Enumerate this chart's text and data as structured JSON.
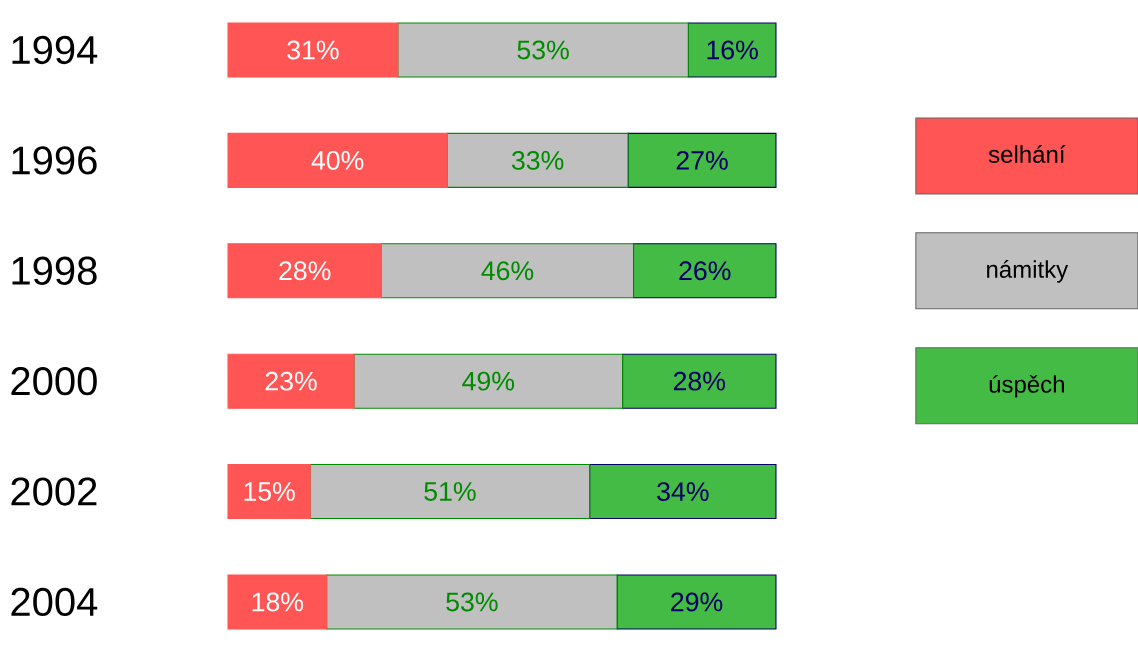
{
  "chart_data": {
    "type": "bar",
    "orientation": "horizontal",
    "stacked": true,
    "categories": [
      "1994",
      "1996",
      "1998",
      "2000",
      "2002",
      "2004"
    ],
    "tick_labels": "y",
    "legend": "right",
    "series": [
      {
        "name": "selhání",
        "color": "#ff5555",
        "values": [
          31,
          40,
          28,
          23,
          15,
          18
        ],
        "value_labels": [
          "31%",
          "40%",
          "28%",
          "23%",
          "15%",
          "18%"
        ]
      },
      {
        "name": "námitky",
        "color": "#c0c0c0",
        "values": [
          53,
          33,
          46,
          49,
          51,
          53
        ],
        "value_labels": [
          "53%",
          "33%",
          "46%",
          "49%",
          "51%",
          "53%"
        ]
      },
      {
        "name": "úspěch",
        "color": "#44bb44",
        "values": [
          16,
          27,
          26,
          28,
          34,
          29
        ],
        "value_labels": [
          "16%",
          "27%",
          "26%",
          "28%",
          "34%",
          "29%"
        ]
      }
    ]
  }
}
